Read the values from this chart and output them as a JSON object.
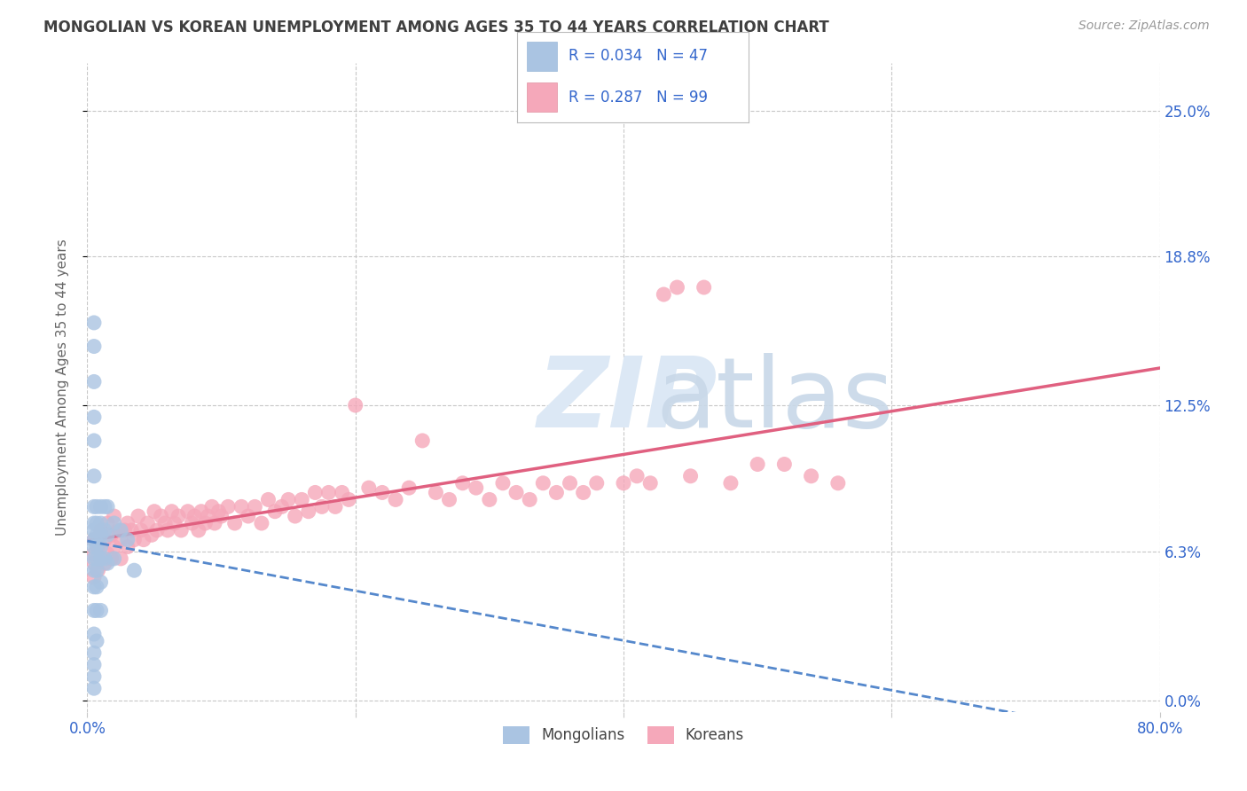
{
  "title": "MONGOLIAN VS KOREAN UNEMPLOYMENT AMONG AGES 35 TO 44 YEARS CORRELATION CHART",
  "source": "Source: ZipAtlas.com",
  "ylabel": "Unemployment Among Ages 35 to 44 years",
  "xlim": [
    0.0,
    0.8
  ],
  "ylim": [
    -0.005,
    0.27
  ],
  "yticks": [
    0.0,
    0.063,
    0.125,
    0.188,
    0.25
  ],
  "ytick_labels": [
    "0.0%",
    "6.3%",
    "12.5%",
    "18.8%",
    "25.0%"
  ],
  "xticks": [
    0.0,
    0.2,
    0.4,
    0.6,
    0.8
  ],
  "xtick_labels": [
    "0.0%",
    "",
    "",
    "",
    "80.0%"
  ],
  "mongolian_R": 0.034,
  "mongolian_N": 47,
  "korean_R": 0.287,
  "korean_N": 99,
  "mongolian_color": "#aac4e2",
  "korean_color": "#f5a8ba",
  "mongolian_line_color": "#5588cc",
  "korean_line_color": "#e06080",
  "background_color": "#ffffff",
  "grid_color": "#c8c8c8",
  "title_color": "#404040",
  "axis_label_color": "#3366cc",
  "mongolian_x": [
    0.005,
    0.005,
    0.005,
    0.005,
    0.005,
    0.005,
    0.005,
    0.005,
    0.005,
    0.005,
    0.005,
    0.005,
    0.005,
    0.005,
    0.005,
    0.005,
    0.005,
    0.005,
    0.005,
    0.005,
    0.007,
    0.007,
    0.007,
    0.007,
    0.007,
    0.007,
    0.007,
    0.007,
    0.007,
    0.01,
    0.01,
    0.01,
    0.01,
    0.01,
    0.01,
    0.01,
    0.013,
    0.013,
    0.013,
    0.015,
    0.015,
    0.015,
    0.02,
    0.02,
    0.025,
    0.03,
    0.035
  ],
  "mongolian_y": [
    0.16,
    0.15,
    0.135,
    0.12,
    0.11,
    0.095,
    0.082,
    0.075,
    0.072,
    0.068,
    0.065,
    0.06,
    0.055,
    0.048,
    0.038,
    0.028,
    0.02,
    0.015,
    0.01,
    0.005,
    0.082,
    0.075,
    0.07,
    0.065,
    0.06,
    0.055,
    0.048,
    0.038,
    0.025,
    0.082,
    0.075,
    0.07,
    0.065,
    0.06,
    0.05,
    0.038,
    0.082,
    0.072,
    0.06,
    0.082,
    0.07,
    0.058,
    0.075,
    0.06,
    0.072,
    0.068,
    0.055
  ],
  "korean_x": [
    0.005,
    0.005,
    0.005,
    0.005,
    0.008,
    0.008,
    0.01,
    0.01,
    0.013,
    0.013,
    0.015,
    0.015,
    0.018,
    0.018,
    0.02,
    0.02,
    0.023,
    0.025,
    0.025,
    0.028,
    0.03,
    0.03,
    0.033,
    0.035,
    0.038,
    0.04,
    0.042,
    0.045,
    0.048,
    0.05,
    0.052,
    0.055,
    0.058,
    0.06,
    0.063,
    0.065,
    0.068,
    0.07,
    0.075,
    0.078,
    0.08,
    0.083,
    0.085,
    0.088,
    0.09,
    0.093,
    0.095,
    0.098,
    0.1,
    0.105,
    0.11,
    0.115,
    0.12,
    0.125,
    0.13,
    0.135,
    0.14,
    0.145,
    0.15,
    0.155,
    0.16,
    0.165,
    0.17,
    0.175,
    0.18,
    0.185,
    0.19,
    0.195,
    0.2,
    0.21,
    0.22,
    0.23,
    0.24,
    0.25,
    0.26,
    0.27,
    0.28,
    0.29,
    0.3,
    0.31,
    0.32,
    0.33,
    0.34,
    0.35,
    0.36,
    0.37,
    0.38,
    0.4,
    0.41,
    0.42,
    0.43,
    0.44,
    0.45,
    0.46,
    0.48,
    0.5,
    0.52,
    0.54,
    0.56
  ],
  "korean_y": [
    0.068,
    0.062,
    0.058,
    0.052,
    0.065,
    0.055,
    0.072,
    0.06,
    0.068,
    0.058,
    0.075,
    0.062,
    0.07,
    0.06,
    0.078,
    0.065,
    0.072,
    0.068,
    0.06,
    0.072,
    0.075,
    0.065,
    0.072,
    0.068,
    0.078,
    0.072,
    0.068,
    0.075,
    0.07,
    0.08,
    0.072,
    0.078,
    0.075,
    0.072,
    0.08,
    0.075,
    0.078,
    0.072,
    0.08,
    0.075,
    0.078,
    0.072,
    0.08,
    0.075,
    0.078,
    0.082,
    0.075,
    0.08,
    0.078,
    0.082,
    0.075,
    0.082,
    0.078,
    0.082,
    0.075,
    0.085,
    0.08,
    0.082,
    0.085,
    0.078,
    0.085,
    0.08,
    0.088,
    0.082,
    0.088,
    0.082,
    0.088,
    0.085,
    0.125,
    0.09,
    0.088,
    0.085,
    0.09,
    0.11,
    0.088,
    0.085,
    0.092,
    0.09,
    0.085,
    0.092,
    0.088,
    0.085,
    0.092,
    0.088,
    0.092,
    0.088,
    0.092,
    0.092,
    0.095,
    0.092,
    0.172,
    0.175,
    0.095,
    0.175,
    0.092,
    0.1,
    0.1,
    0.095,
    0.092
  ]
}
